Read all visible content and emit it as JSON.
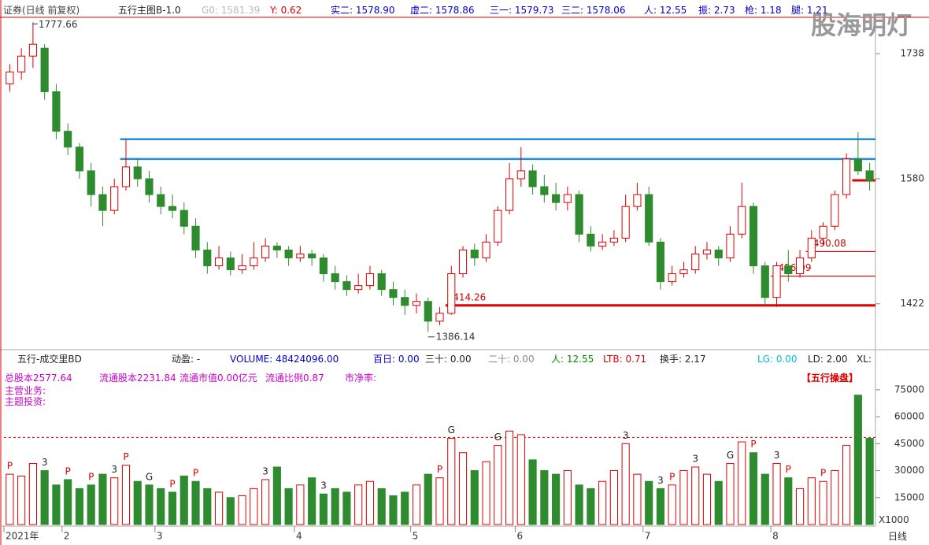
{
  "header": {
    "security": "证券(日线 前复权)",
    "indicator": "五行主图B-1.0",
    "g0": "G0: 1581.39",
    "y": "Y: 0.62",
    "items": [
      "实二: 1578.90",
      "虚二: 1578.86",
      "三一: 1579.73",
      "三二: 1578.06",
      "人: 12.55",
      "振: 2.73",
      "枪: 1.18",
      "腿: 1.21"
    ],
    "watermark": "股海明灯"
  },
  "volume_header": {
    "indicator": "五行-成交里BD",
    "items": [
      "动盈: -",
      "VOLUME: 48424096.00",
      "百日: 0.00",
      "三十: 0.00",
      "二十: 0.00",
      "人: 12.55",
      "LTB: 0.71",
      "换手: 2.17",
      "LG: 0.00",
      "LD: 2.00",
      "XL:"
    ],
    "info": [
      "总股本2577.64",
      "流通股本2231.84",
      "流通市值0.00亿元",
      "流通比例0.87",
      "市净率:"
    ],
    "business": "主营业务:",
    "theme": "主题投资:",
    "button": "【五行操盘】",
    "multiplier": "X1000",
    "period": "日线"
  },
  "chart_data": [
    {
      "type": "candlestick",
      "up_color": "#e00000",
      "down_color": "#2e8b2e",
      "categories": [
        "2021年",
        null,
        null,
        null,
        null,
        "2",
        null,
        null,
        null,
        null,
        null,
        null,
        null,
        "3",
        null,
        null,
        null,
        null,
        null,
        null,
        null,
        null,
        null,
        null,
        null,
        "4",
        null,
        null,
        null,
        null,
        null,
        null,
        null,
        null,
        null,
        "5",
        null,
        null,
        null,
        null,
        null,
        null,
        null,
        null,
        "6",
        null,
        null,
        null,
        null,
        null,
        null,
        null,
        null,
        null,
        null,
        "7",
        null,
        null,
        null,
        null,
        null,
        null,
        null,
        null,
        null,
        null,
        "8",
        null,
        null,
        null,
        null,
        null,
        null,
        null,
        null
      ],
      "open": [
        1700,
        1715,
        1735,
        1745,
        1690,
        1640,
        1620,
        1590,
        1560,
        1540,
        1570,
        1595,
        1580,
        1560,
        1545,
        1540,
        1520,
        1490,
        1470,
        1480,
        1465,
        1470,
        1480,
        1495,
        1490,
        1480,
        1485,
        1480,
        1460,
        1450,
        1440,
        1445,
        1460,
        1440,
        1430,
        1420,
        1425,
        1400,
        1410,
        1460,
        1490,
        1480,
        1500,
        1540,
        1580,
        1590,
        1570,
        1560,
        1550,
        1560,
        1510,
        1495,
        1500,
        1505,
        1545,
        1560,
        1500,
        1450,
        1460,
        1465,
        1485,
        1490,
        1480,
        1510,
        1545,
        1470,
        1430,
        1470,
        1460,
        1480,
        1505,
        1520,
        1560,
        1605,
        1590
      ],
      "high": [
        1725,
        1745,
        1777.66,
        1750,
        1700,
        1650,
        1625,
        1600,
        1570,
        1580,
        1630,
        1605,
        1590,
        1570,
        1560,
        1550,
        1530,
        1500,
        1495,
        1488,
        1485,
        1500,
        1505,
        1500,
        1495,
        1495,
        1490,
        1485,
        1470,
        1458,
        1460,
        1470,
        1465,
        1450,
        1440,
        1435,
        1430,
        1418,
        1470,
        1495,
        1498,
        1510,
        1545,
        1600,
        1620,
        1598,
        1585,
        1575,
        1570,
        1565,
        1520,
        1510,
        1515,
        1560,
        1575,
        1570,
        1505,
        1470,
        1475,
        1495,
        1500,
        1495,
        1520,
        1575,
        1550,
        1475,
        1475,
        1490,
        1490,
        1515,
        1525,
        1565,
        1612,
        1639,
        1600
      ],
      "low": [
        1690,
        1705,
        1720,
        1680,
        1630,
        1610,
        1580,
        1545,
        1520,
        1535,
        1565,
        1570,
        1550,
        1535,
        1530,
        1510,
        1480,
        1460,
        1465,
        1458,
        1460,
        1465,
        1475,
        1480,
        1470,
        1475,
        1470,
        1450,
        1440,
        1432,
        1435,
        1440,
        1432,
        1420,
        1408,
        1410,
        1386.14,
        1395,
        1408,
        1455,
        1470,
        1475,
        1495,
        1535,
        1570,
        1560,
        1550,
        1540,
        1540,
        1500,
        1488,
        1490,
        1495,
        1500,
        1540,
        1495,
        1440,
        1445,
        1455,
        1460,
        1478,
        1470,
        1475,
        1505,
        1460,
        1420,
        1418,
        1450,
        1455,
        1475,
        1495,
        1515,
        1555,
        1585,
        1565
      ],
      "close": [
        1715,
        1735,
        1750,
        1690,
        1640,
        1620,
        1590,
        1560,
        1540,
        1570,
        1595,
        1580,
        1560,
        1545,
        1540,
        1520,
        1490,
        1470,
        1480,
        1465,
        1470,
        1480,
        1495,
        1490,
        1480,
        1485,
        1480,
        1460,
        1450,
        1440,
        1445,
        1460,
        1440,
        1430,
        1420,
        1425,
        1400,
        1410,
        1460,
        1490,
        1480,
        1500,
        1540,
        1580,
        1590,
        1570,
        1560,
        1550,
        1560,
        1510,
        1495,
        1500,
        1505,
        1545,
        1560,
        1500,
        1450,
        1460,
        1465,
        1485,
        1490,
        1480,
        1510,
        1545,
        1470,
        1430,
        1470,
        1460,
        1480,
        1505,
        1520,
        1560,
        1605,
        1590,
        1578
      ],
      "ylim": [
        1368,
        1784
      ],
      "yticks": [
        1422,
        1580,
        1738
      ],
      "levels": [
        {
          "value": 1630,
          "color": "#1e8fd8",
          "from": 10
        },
        {
          "value": 1605,
          "color": "#1e8fd8",
          "from": 10
        },
        {
          "value": 1420,
          "color": "#e00000",
          "from": 38,
          "label": "414.26"
        },
        {
          "value": 1488,
          "color": "#e00000",
          "from": 69,
          "label": "490.08"
        },
        {
          "value": 1457,
          "color": "#e00000",
          "from": 66,
          "label": "456.99"
        },
        {
          "value": 1578,
          "color": "#e00000",
          "from": 73
        }
      ]
    },
    {
      "type": "volume",
      "up_color": "#e00000",
      "down_color": "#2e8b2e",
      "values": [
        28000,
        27000,
        34000,
        30000,
        22000,
        25000,
        20000,
        22000,
        28000,
        26000,
        33000,
        24000,
        22000,
        20000,
        18000,
        27000,
        24000,
        20000,
        18000,
        15000,
        16000,
        20000,
        25000,
        32000,
        20000,
        22000,
        26000,
        17000,
        20000,
        18000,
        22000,
        24000,
        20000,
        16000,
        18000,
        22000,
        28000,
        26000,
        48000,
        40000,
        30000,
        35000,
        44000,
        52000,
        50000,
        36000,
        30000,
        28000,
        30000,
        22000,
        20000,
        24000,
        30000,
        45000,
        28000,
        24000,
        20000,
        22000,
        30000,
        32000,
        28000,
        24000,
        34000,
        46000,
        40000,
        28000,
        34000,
        26000,
        20000,
        26000,
        24000,
        30000,
        44000,
        72000,
        48000
      ],
      "signals": [
        "P",
        null,
        null,
        "3",
        null,
        "P",
        null,
        "P",
        null,
        "3",
        "P",
        null,
        "G",
        null,
        "P",
        null,
        "P",
        null,
        null,
        null,
        null,
        null,
        "3",
        null,
        null,
        null,
        null,
        "3",
        null,
        null,
        null,
        null,
        null,
        null,
        null,
        null,
        null,
        "P",
        "G",
        null,
        null,
        null,
        "G",
        null,
        null,
        null,
        null,
        null,
        null,
        null,
        null,
        null,
        null,
        "3",
        null,
        null,
        "3",
        "P",
        null,
        "3",
        null,
        null,
        "G",
        null,
        "P",
        null,
        "3",
        "P",
        null,
        null,
        "P",
        null,
        null,
        null,
        null
      ],
      "ylim": [
        0,
        82400
      ],
      "yticks": [
        15000,
        30000,
        45000,
        60000,
        75000
      ],
      "hline": 48500
    }
  ]
}
